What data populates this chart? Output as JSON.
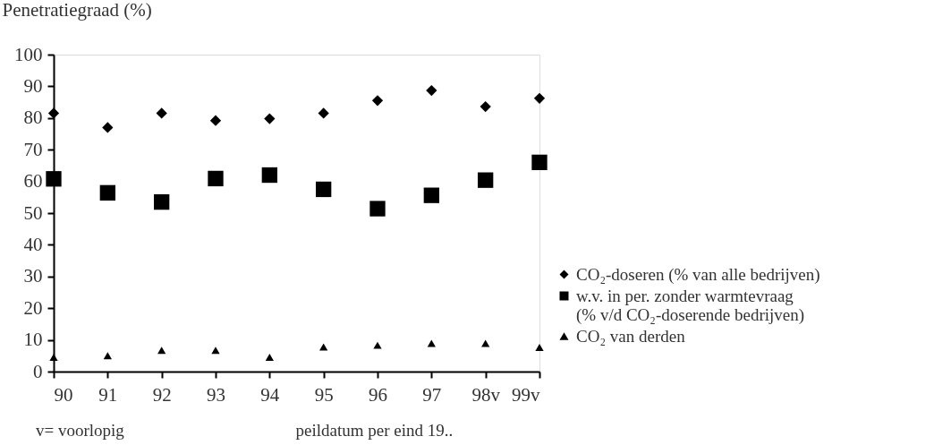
{
  "chart_data": {
    "type": "scatter",
    "ylabel": "Penetratiegraad (%)",
    "xlabel": "peildatum per eind 19..",
    "annotations": [
      "v= voorlopig"
    ],
    "categories": [
      "90",
      "91",
      "92",
      "93",
      "94",
      "95",
      "96",
      "97",
      "98v",
      "99v"
    ],
    "ylim": [
      0,
      100
    ],
    "yticks": [
      0,
      10,
      20,
      30,
      40,
      50,
      60,
      70,
      80,
      90,
      100
    ],
    "grid": false,
    "legend": "right",
    "series": [
      {
        "name": "CO₂-doseren (% van alle bedrijven)",
        "color": "#000000",
        "marker": "diamond",
        "values": [
          81.5,
          77,
          81.5,
          79.2,
          79.8,
          81.5,
          85.5,
          88.7,
          83.6,
          86.2
        ]
      },
      {
        "name": "w.v. in per. zonder warmtevraag (% v/d CO₂-doserende bedrijven)",
        "color": "#000000",
        "marker": "square",
        "values": [
          60.8,
          56.4,
          53.5,
          60.9,
          62,
          57.5,
          51.4,
          55.6,
          60.4,
          66
        ]
      },
      {
        "name": "CO₂ van derden",
        "color": "#000000",
        "marker": "triangle",
        "values": [
          4.5,
          5,
          6.7,
          6.7,
          4.5,
          7.8,
          8.3,
          8.9,
          8.9,
          7.6
        ]
      }
    ]
  }
}
